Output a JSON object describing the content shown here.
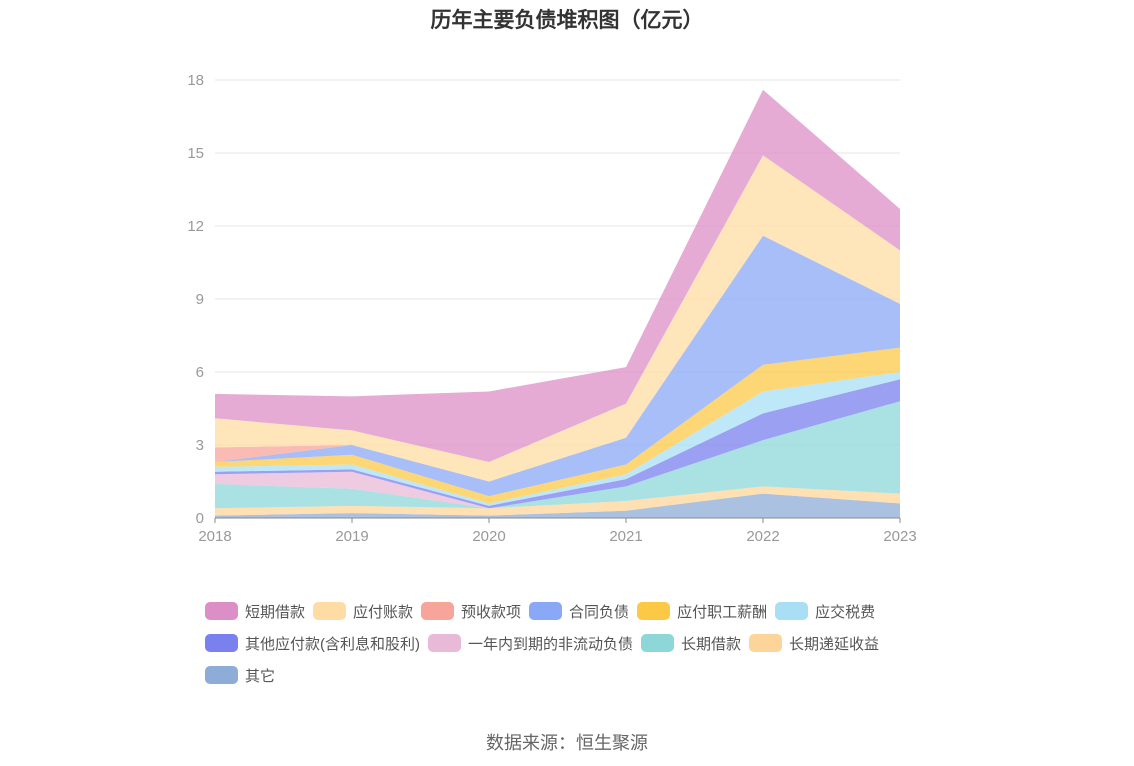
{
  "chart_data": {
    "type": "area",
    "stacked": true,
    "title": "历年主要负债堆积图（亿元）",
    "x": [
      "2018",
      "2019",
      "2020",
      "2021",
      "2022",
      "2023"
    ],
    "ylim": [
      0,
      18
    ],
    "yticks": [
      0,
      3,
      6,
      9,
      12,
      15,
      18
    ],
    "grid": true,
    "legend_position": "bottom",
    "series": [
      {
        "name": "其它",
        "color": "#8eacd8",
        "values": [
          0.1,
          0.2,
          0.1,
          0.3,
          1.0,
          0.6
        ]
      },
      {
        "name": "长期递延收益",
        "color": "#fdd59a",
        "values": [
          0.3,
          0.3,
          0.3,
          0.4,
          0.3,
          0.4
        ]
      },
      {
        "name": "长期借款",
        "color": "#8ed7d8",
        "values": [
          1.0,
          0.7,
          0.0,
          0.6,
          1.9,
          3.8
        ]
      },
      {
        "name": "一年内到期的非流动负债",
        "color": "#e9b9d8",
        "values": [
          0.4,
          0.7,
          0.0,
          0.0,
          0.0,
          0.0
        ]
      },
      {
        "name": "其他应付款(含利息和股利)",
        "color": "#7a80ee",
        "values": [
          0.1,
          0.1,
          0.1,
          0.3,
          1.1,
          0.9
        ]
      },
      {
        "name": "应交税费",
        "color": "#a8dff5",
        "values": [
          0.2,
          0.2,
          0.1,
          0.2,
          0.9,
          0.3
        ]
      },
      {
        "name": "应付职工薪酬",
        "color": "#fcc947",
        "values": [
          0.2,
          0.4,
          0.3,
          0.4,
          1.1,
          1.0
        ]
      },
      {
        "name": "合同负债",
        "color": "#89a8f5",
        "values": [
          0.0,
          0.4,
          0.6,
          1.1,
          5.3,
          1.8
        ]
      },
      {
        "name": "预收款项",
        "color": "#f7a49a",
        "values": [
          0.6,
          0.0,
          0.0,
          0.0,
          0.0,
          0.0
        ]
      },
      {
        "name": "应付账款",
        "color": "#fedca3",
        "values": [
          1.2,
          0.6,
          0.8,
          1.4,
          3.3,
          2.2
        ]
      },
      {
        "name": "短期借款",
        "color": "#dc8fc6",
        "values": [
          1.0,
          1.4,
          2.9,
          1.5,
          2.7,
          1.7
        ]
      }
    ],
    "legend_order": [
      "短期借款",
      "应付账款",
      "预收款项",
      "合同负债",
      "应付职工薪酬",
      "应交税费",
      "其他应付款(含利息和股利)",
      "一年内到期的非流动负债",
      "长期借款",
      "长期递延收益",
      "其它"
    ]
  },
  "source_text": "数据来源：恒生聚源"
}
